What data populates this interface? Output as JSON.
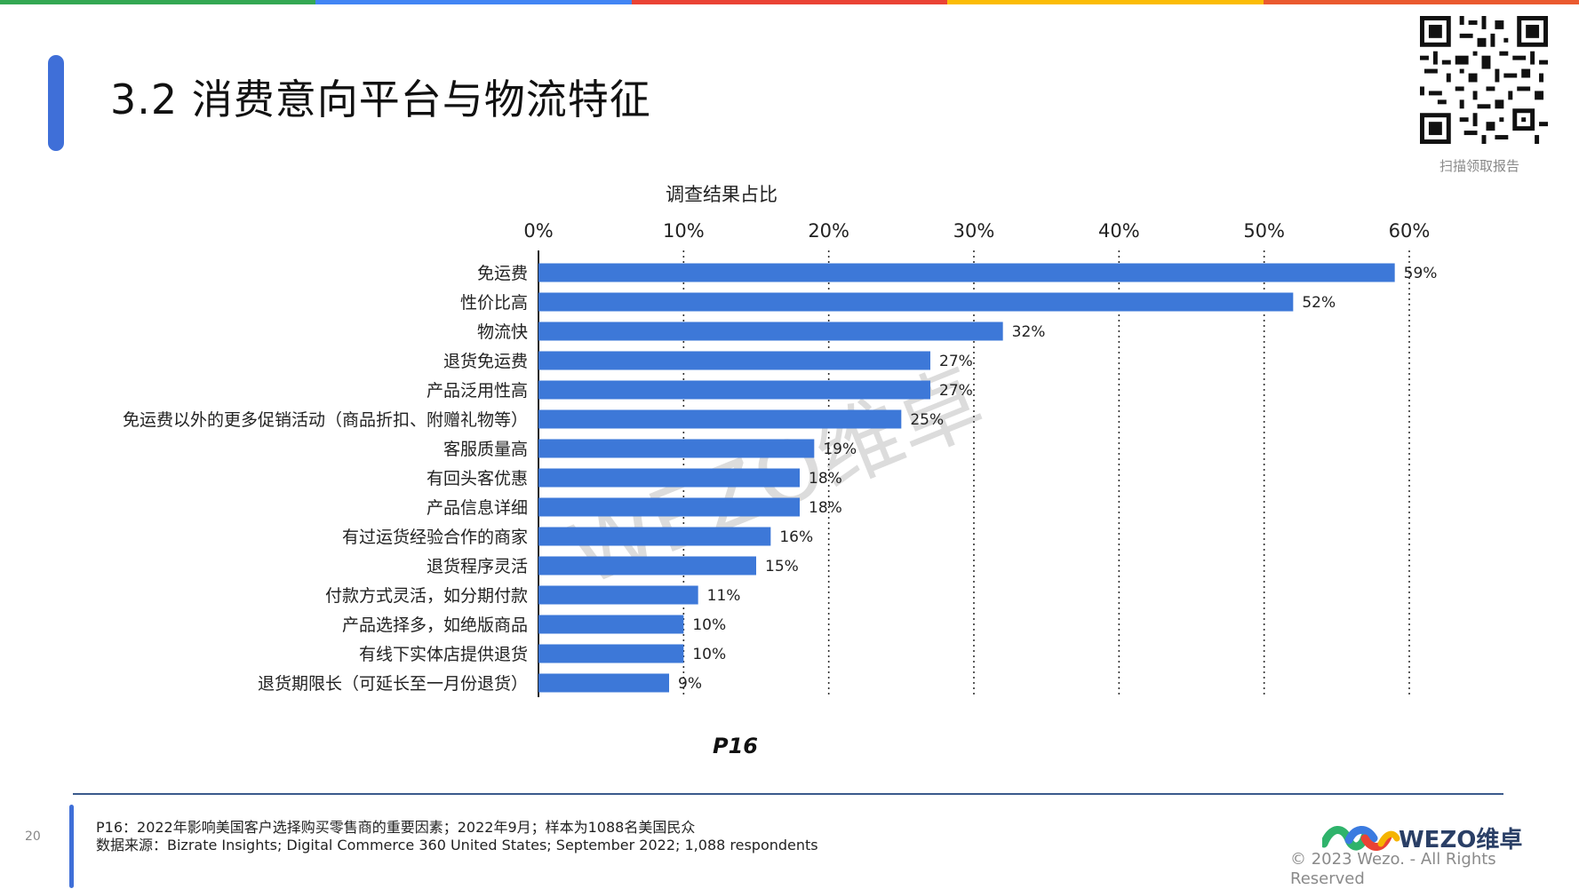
{
  "topbar_colors": [
    "#34a853",
    "#4285f4",
    "#ea4335",
    "#fbbc05",
    "#ea5a2f"
  ],
  "accent_color": "#3f6fd8",
  "header": {
    "title": "3.2 消费意向平台与物流特征",
    "qr_caption": "扫描领取报告"
  },
  "chart_data": {
    "type": "bar",
    "orientation": "horizontal",
    "title": "调查结果占比",
    "xlabel": "",
    "ylabel": "",
    "xlim": [
      0,
      60
    ],
    "x_ticks": [
      "0%",
      "10%",
      "20%",
      "30%",
      "40%",
      "50%",
      "60%"
    ],
    "grid": "vertical dotted",
    "bar_color": "#3d78d8",
    "categories": [
      "免运费",
      "性价比高",
      "物流快",
      "退货免运费",
      "产品泛用性高",
      "免运费以外的更多促销活动（商品折扣、附赠礼物等）",
      "客服质量高",
      "有回头客优惠",
      "产品信息详细",
      "有过运货经验合作的商家",
      "退货程序灵活",
      "付款方式灵活，如分期付款",
      "产品选择多，如绝版商品",
      "有线下实体店提供退货",
      "退货期限长（可延长至一月份退货）"
    ],
    "values": [
      59,
      52,
      32,
      27,
      27,
      25,
      19,
      18,
      18,
      16,
      15,
      11,
      10,
      10,
      9
    ],
    "data_labels": [
      "59%",
      "52%",
      "32%",
      "27%",
      "27%",
      "25%",
      "19%",
      "18%",
      "18%",
      "16%",
      "15%",
      "11%",
      "10%",
      "10%",
      "9%"
    ]
  },
  "page_label": "P16",
  "footer": {
    "page_number": "20",
    "note_line1": "P16：2022年影响美国客户选择购买零售商的重要因素；2022年9月；样本为1088名美国民众",
    "note_line2": "数据来源：Bizrate Insights; Digital Commerce 360 United States; September 2022; 1,088 respondents",
    "logo_text": "WEZO维卓",
    "copyright": "© 2023 Wezo. - All Rights Reserved"
  },
  "watermark": "WEZO维卓"
}
